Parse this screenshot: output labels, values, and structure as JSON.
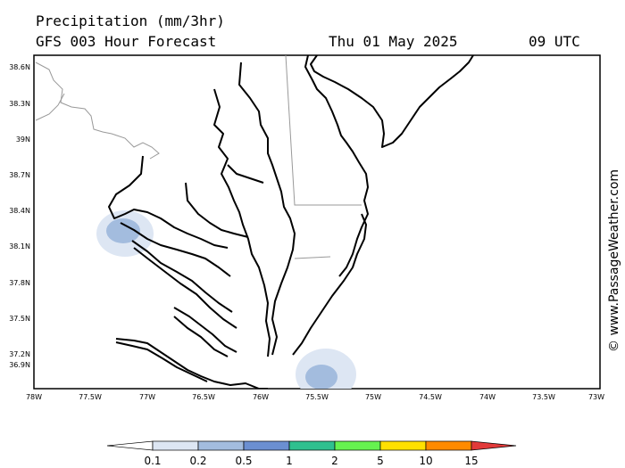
{
  "header": {
    "title": "Precipitation (mm/3hr)",
    "model": "GFS 003 Hour Forecast",
    "date": "Thu 01 May 2025",
    "time": "09 UTC"
  },
  "watermark": "© www.PassageWeather.com",
  "map": {
    "lat_labels": [
      "38.6N",
      "38.3N",
      "39N",
      "38.7N",
      "38.4N",
      "38.1N",
      "37.8N",
      "37.5N",
      "37.2N",
      "36.9N"
    ],
    "lon_labels": [
      "78W",
      "77.5W",
      "77W",
      "76.5W",
      "76W",
      "75.5W",
      "75W",
      "74.5W",
      "74W",
      "73.5W",
      "73W"
    ],
    "precip_areas": [
      {
        "location": "near 77.2W 38.2N",
        "level_mm": [
          0.1,
          0.5
        ]
      },
      {
        "location": "near 75.5W 37.1N",
        "level_mm": [
          0.1,
          0.5
        ]
      }
    ]
  },
  "legend": {
    "labels": [
      "0.1",
      "0.2",
      "0.5",
      "1",
      "2",
      "5",
      "10",
      "15"
    ],
    "colors": [
      "#ffffff",
      "#dde6f3",
      "#a3bcde",
      "#6b8fd1",
      "#2fc08f",
      "#66f24f",
      "#ffe000",
      "#ff8a00",
      "#e23a3a"
    ]
  }
}
